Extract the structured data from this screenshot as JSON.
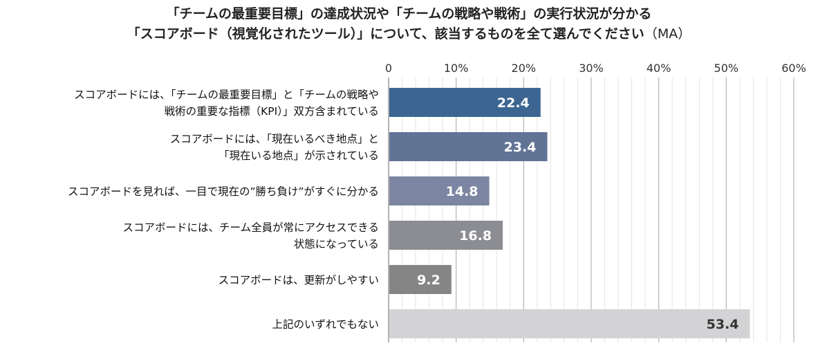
{
  "title": {
    "line1": "「チームの最重要目標」の達成状況や「チームの戦略や戦術」の実行状況が分かる",
    "line2": "「スコアボード（視覚化されたツール）」について、該当するものを全て選んでください",
    "suffix": "（MA）"
  },
  "chart_data": {
    "type": "bar",
    "orientation": "horizontal",
    "xlim": [
      0,
      60
    ],
    "ticks": [
      {
        "value": 0,
        "label": "0"
      },
      {
        "value": 10,
        "label": "10%"
      },
      {
        "value": 20,
        "label": "20%"
      },
      {
        "value": 30,
        "label": "30%"
      },
      {
        "value": 40,
        "label": "40%"
      },
      {
        "value": 50,
        "label": "50%"
      },
      {
        "value": 60,
        "label": "60%"
      }
    ],
    "grid": true,
    "bars": [
      {
        "label_lines": [
          "スコアボードには、「チームの最重要目標」と「チームの戦略や",
          "戦術の重要な指標（KPI）」双方含まれている"
        ],
        "value": 22.4,
        "label": "22.4",
        "color": "#3c6591",
        "text_color": "#ffffff"
      },
      {
        "label_lines": [
          "スコアボードには、「現在いるべき地点」と",
          "「現在いる地点」が示されている"
        ],
        "value": 23.4,
        "label": "23.4",
        "color": "#617496",
        "text_color": "#ffffff"
      },
      {
        "label_lines": [
          "スコアボードを見れば、一目で現在の”勝ち負け”がすぐに分かる"
        ],
        "value": 14.8,
        "label": "14.8",
        "color": "#7c85a1",
        "text_color": "#ffffff"
      },
      {
        "label_lines": [
          "スコアボードには、チーム全員が常にアクセスできる",
          "状態になっている"
        ],
        "value": 16.8,
        "label": "16.8",
        "color": "#8c8d92",
        "text_color": "#ffffff"
      },
      {
        "label_lines": [
          "スコアボードは、更新がしやすい"
        ],
        "value": 9.2,
        "label": "9.2",
        "color": "#858585",
        "text_color": "#ffffff"
      },
      {
        "label_lines": [
          "上記のいずれでもない"
        ],
        "value": 53.4,
        "label": "53.4",
        "color": "#d3d3d5",
        "text_color": "#333333"
      }
    ]
  }
}
